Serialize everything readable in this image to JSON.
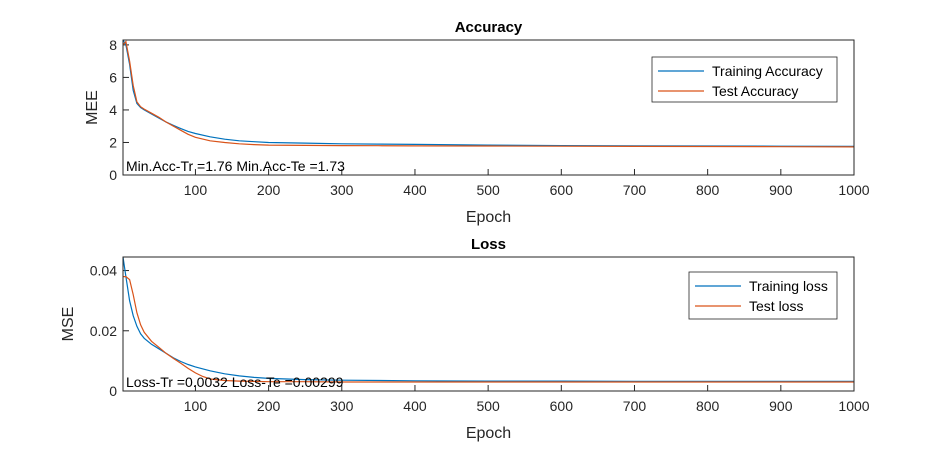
{
  "chart_data": [
    {
      "type": "line",
      "title": "Accuracy",
      "xlabel": "Epoch",
      "ylabel": "MEE",
      "xlim": [
        1,
        1000
      ],
      "ylim": [
        0,
        8.3
      ],
      "xticks": [
        100,
        200,
        300,
        400,
        500,
        600,
        700,
        800,
        900,
        1000
      ],
      "yticks": [
        0,
        2,
        4,
        6,
        8
      ],
      "legend_position": "top-right",
      "grid": false,
      "annotation": "Min.Acc-Tr =1.76 Min.Acc-Te =1.73",
      "series": [
        {
          "name": "Training Accuracy",
          "color": "#0072BD",
          "x": [
            1,
            5,
            10,
            15,
            20,
            25,
            30,
            40,
            50,
            60,
            70,
            80,
            90,
            100,
            120,
            140,
            160,
            180,
            200,
            250,
            300,
            350,
            400,
            500,
            600,
            700,
            800,
            900,
            1000
          ],
          "y": [
            8.3,
            8.0,
            6.8,
            5.2,
            4.4,
            4.15,
            4.0,
            3.75,
            3.5,
            3.25,
            3.05,
            2.85,
            2.68,
            2.55,
            2.35,
            2.2,
            2.1,
            2.05,
            2.0,
            1.96,
            1.92,
            1.9,
            1.88,
            1.84,
            1.81,
            1.79,
            1.78,
            1.77,
            1.76
          ]
        },
        {
          "name": "Test  Accuracy",
          "color": "#D95319",
          "x": [
            1,
            5,
            10,
            15,
            20,
            25,
            30,
            40,
            50,
            60,
            70,
            80,
            90,
            100,
            120,
            140,
            160,
            180,
            200,
            250,
            300,
            350,
            400,
            500,
            600,
            700,
            800,
            900,
            1000
          ],
          "y": [
            8.0,
            8.2,
            7.0,
            5.5,
            4.5,
            4.2,
            4.05,
            3.8,
            3.55,
            3.25,
            3.0,
            2.75,
            2.5,
            2.32,
            2.1,
            2.0,
            1.92,
            1.87,
            1.84,
            1.82,
            1.81,
            1.8,
            1.79,
            1.78,
            1.77,
            1.76,
            1.75,
            1.74,
            1.73
          ]
        }
      ]
    },
    {
      "type": "line",
      "title": "Loss",
      "xlabel": "Epoch",
      "ylabel": "MSE",
      "xlim": [
        1,
        1000
      ],
      "ylim": [
        0,
        0.0445
      ],
      "xticks": [
        100,
        200,
        300,
        400,
        500,
        600,
        700,
        800,
        900,
        1000
      ],
      "yticks": [
        0,
        0.02,
        0.04
      ],
      "ytick_labels": [
        "0",
        "0.02",
        "0.04"
      ],
      "legend_position": "top-right",
      "grid": false,
      "annotation": "Loss-Tr =0.0032 Loss-Te =0.00299",
      "series": [
        {
          "name": "Training loss",
          "color": "#0072BD",
          "x": [
            1,
            5,
            10,
            15,
            20,
            25,
            30,
            40,
            50,
            60,
            70,
            80,
            90,
            100,
            120,
            140,
            160,
            180,
            200,
            250,
            300,
            400,
            500,
            600,
            700,
            800,
            900,
            1000
          ],
          "y": [
            0.0445,
            0.038,
            0.03,
            0.025,
            0.0215,
            0.019,
            0.0175,
            0.0155,
            0.014,
            0.0125,
            0.011,
            0.0098,
            0.0088,
            0.008,
            0.0067,
            0.0057,
            0.005,
            0.0045,
            0.0042,
            0.0038,
            0.0036,
            0.0034,
            0.0033,
            0.0033,
            0.0032,
            0.0032,
            0.0032,
            0.0032
          ]
        },
        {
          "name": "Test loss",
          "color": "#D95319",
          "x": [
            1,
            5,
            10,
            15,
            20,
            25,
            30,
            40,
            50,
            60,
            70,
            80,
            90,
            100,
            110,
            120,
            140,
            160,
            180,
            200,
            250,
            300,
            400,
            500,
            600,
            700,
            800,
            900,
            1000
          ],
          "y": [
            0.038,
            0.038,
            0.037,
            0.032,
            0.026,
            0.022,
            0.0195,
            0.0165,
            0.0145,
            0.0125,
            0.0108,
            0.0092,
            0.0075,
            0.006,
            0.0048,
            0.004,
            0.0035,
            0.0033,
            0.0032,
            0.0031,
            0.0031,
            0.003,
            0.003,
            0.003,
            0.003,
            0.003,
            0.003,
            0.003,
            0.00299
          ]
        }
      ]
    }
  ]
}
